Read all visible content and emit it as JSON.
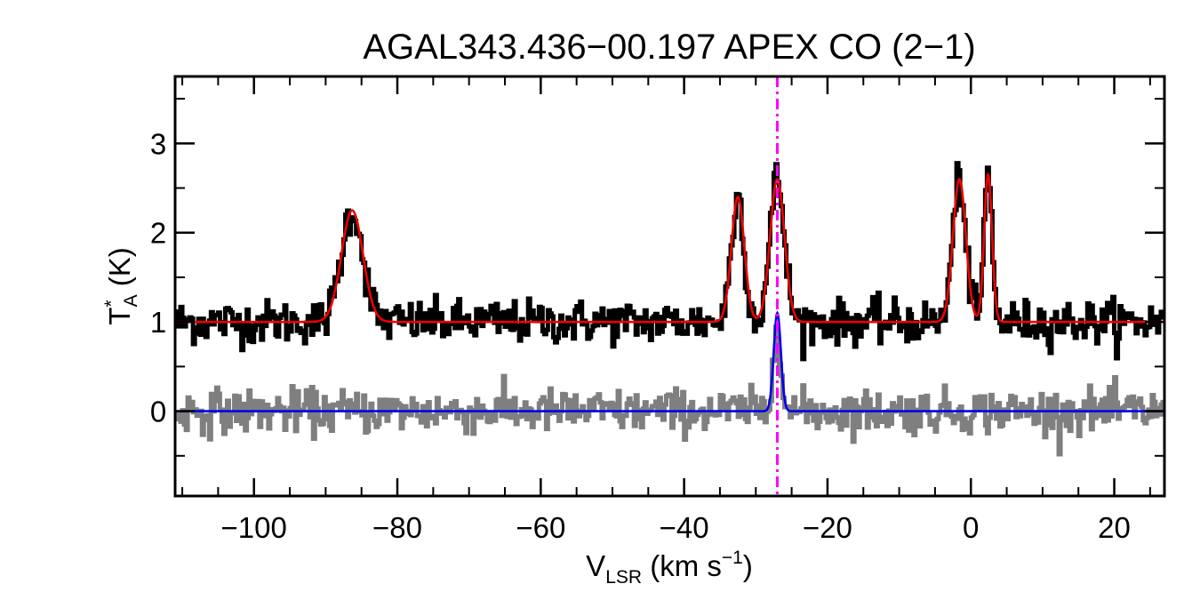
{
  "chart_data": {
    "type": "line",
    "title": "AGAL343.436−00.197  APEX CO (2−1)",
    "xlabel": {
      "main": "V",
      "sub": "LSR",
      "rest": " (km s",
      "sup": "−1",
      "end": ")"
    },
    "ylabel": {
      "main": "T",
      "sup": "*",
      "sub": "A",
      "rest": " (K)"
    },
    "xlim": [
      -111,
      27
    ],
    "ylim": [
      -0.95,
      3.75
    ],
    "xticks": [
      -100,
      -80,
      -60,
      -40,
      -20,
      0,
      20
    ],
    "xtick_labels": [
      "−100",
      "−80",
      "−60",
      "−40",
      "−20",
      "0",
      "20"
    ],
    "yticks": [
      0,
      1,
      2,
      3
    ],
    "ytick_labels": [
      "0",
      "1",
      "2",
      "3"
    ],
    "x_minor_step": 5,
    "y_minor_step": 0.5,
    "grid": false,
    "colors": {
      "observed": "#000000",
      "fit": "#ee0000",
      "residual": "#7f7f7f",
      "residual_fit": "#0000ee",
      "marker": "#ff00ff"
    },
    "series": [
      {
        "role": "observed",
        "style": "histogram",
        "baseline": 1.0,
        "noise_rms": 0.12,
        "channel_width": 0.25,
        "gaussians": [
          {
            "amp": 1.25,
            "center": -86.3,
            "sigma": 1.5
          },
          {
            "amp": 1.4,
            "center": -32.5,
            "sigma": 0.9
          },
          {
            "amp": 1.6,
            "center": -27.0,
            "sigma": 1.0
          },
          {
            "amp": 1.6,
            "center": -1.6,
            "sigma": 0.9
          },
          {
            "amp": 1.65,
            "center": 2.4,
            "sigma": 0.55
          }
        ]
      },
      {
        "role": "fit",
        "style": "line",
        "baseline": 1.0,
        "gaussians": [
          {
            "amp": 1.25,
            "center": -86.3,
            "sigma": 1.5
          },
          {
            "amp": 1.4,
            "center": -32.5,
            "sigma": 0.9
          },
          {
            "amp": 1.6,
            "center": -27.0,
            "sigma": 1.0
          },
          {
            "amp": 1.6,
            "center": -1.6,
            "sigma": 0.9
          },
          {
            "amp": 1.65,
            "center": 2.4,
            "sigma": 0.55
          }
        ]
      },
      {
        "role": "residual",
        "style": "histogram",
        "baseline": 0.0,
        "noise_rms": 0.12,
        "channel_width": 0.25,
        "gaussians": [
          {
            "amp": 1.1,
            "center": -27.0,
            "sigma": 0.5
          }
        ]
      },
      {
        "role": "residual_fit",
        "style": "line",
        "baseline": 0.0,
        "gaussians": [
          {
            "amp": 1.1,
            "center": -27.0,
            "sigma": 0.5
          }
        ]
      }
    ],
    "vline": {
      "x": -27.0,
      "style": "dash-dot"
    }
  }
}
